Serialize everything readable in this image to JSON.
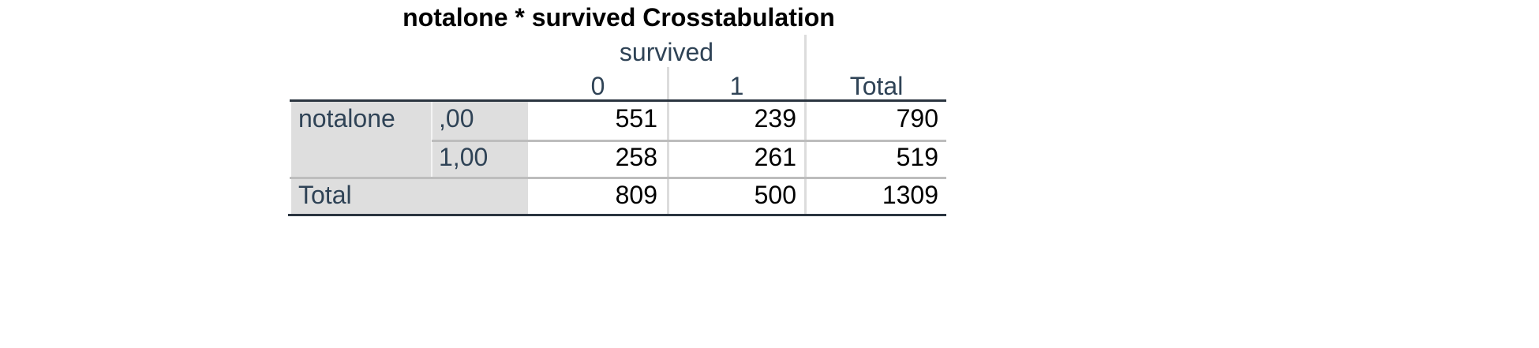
{
  "table": {
    "title": "notalone * survived Crosstabulation",
    "col_variable": "survived",
    "col_headers": [
      "0",
      "1",
      "Total"
    ],
    "row_variable": "notalone",
    "rows": [
      {
        "label": ",00",
        "values": [
          "551",
          "239",
          "790"
        ]
      },
      {
        "label": "1,00",
        "values": [
          "258",
          "261",
          "519"
        ]
      }
    ],
    "total_row": {
      "label": "Total",
      "values": [
        "809",
        "500",
        "1309"
      ]
    }
  },
  "colors": {
    "header_text": "#2f4356",
    "value_text": "#000000",
    "row_header_bg": "#dedede",
    "rule_dark": "#2b3540",
    "rule_light": "#bdbdbd"
  }
}
